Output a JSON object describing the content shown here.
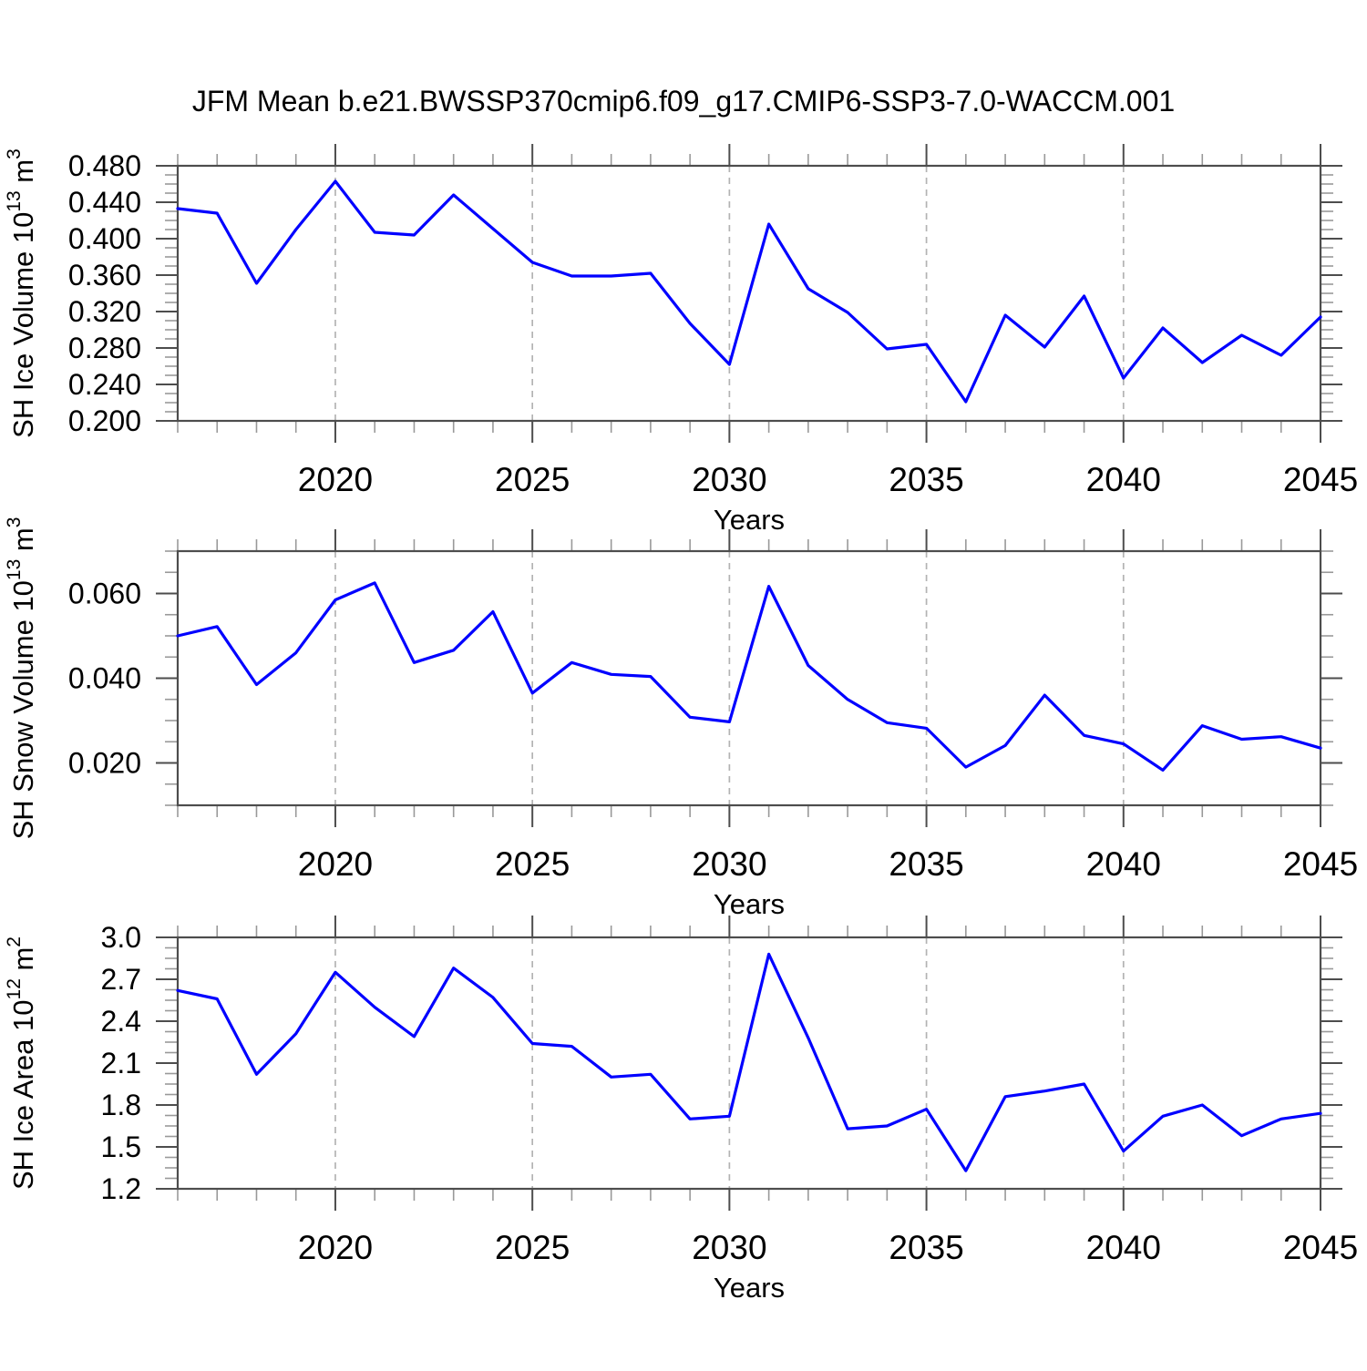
{
  "title": "JFM Mean b.e21.BWSSP370cmip6.f09_g17.CMIP6-SSP3-7.0-WACCM.001",
  "xlabel": "Years",
  "xtick_values": [
    2020,
    2025,
    2030,
    2035,
    2040,
    2045
  ],
  "xtick_labels": [
    "2020",
    "2025",
    "2030",
    "2035",
    "2040",
    "2045"
  ],
  "gridline_years": [
    2020,
    2025,
    2030,
    2035,
    2040
  ],
  "colors": {
    "line": "#0000ff",
    "grid": "#b3b3b3",
    "axis": "#4d4d4d",
    "minor_tick": "#999999",
    "text": "#000000",
    "background": "#ffffff"
  },
  "chart_data": [
    {
      "type": "line",
      "name": "sh-ice-volume",
      "title": "",
      "xlabel": "Years",
      "ylabel": "SH Ice Volume 10^13 m^3",
      "ylabel_parts": [
        {
          "t": "SH Ice Volume 10"
        },
        {
          "t": "13",
          "sup": true
        },
        {
          "t": " m"
        },
        {
          "t": "3",
          "sup": true
        }
      ],
      "x": [
        2016,
        2017,
        2018,
        2019,
        2020,
        2021,
        2022,
        2023,
        2024,
        2025,
        2026,
        2027,
        2028,
        2029,
        2030,
        2031,
        2032,
        2033,
        2034,
        2035,
        2036,
        2037,
        2038,
        2039,
        2040,
        2041,
        2042,
        2043,
        2044,
        2045
      ],
      "series": [
        {
          "name": "SH Ice Volume",
          "values": [
            0.433,
            0.428,
            0.351,
            0.41,
            0.463,
            0.407,
            0.404,
            0.448,
            0.411,
            0.374,
            0.359,
            0.359,
            0.362,
            0.307,
            0.262,
            0.416,
            0.345,
            0.319,
            0.279,
            0.284,
            0.221,
            0.316,
            0.281,
            0.337,
            0.247,
            0.302,
            0.264,
            0.294,
            0.272,
            0.314
          ]
        }
      ],
      "xlim": [
        2016,
        2045
      ],
      "ylim": [
        0.2,
        0.48
      ],
      "ytick_values": [
        0.2,
        0.24,
        0.28,
        0.32,
        0.36,
        0.4,
        0.44,
        0.48
      ],
      "ytick_labels": [
        "0.200",
        "0.240",
        "0.280",
        "0.320",
        "0.360",
        "0.400",
        "0.440",
        "0.480"
      ],
      "y_minor_step": 0.01,
      "grid": "vertical-dashed",
      "legend": "none"
    },
    {
      "type": "line",
      "name": "sh-snow-volume",
      "title": "",
      "xlabel": "Years",
      "ylabel": "SH Snow Volume 10^13 m^3",
      "ylabel_parts": [
        {
          "t": "SH Snow Volume 10"
        },
        {
          "t": "13",
          "sup": true
        },
        {
          "t": " m"
        },
        {
          "t": "3",
          "sup": true
        }
      ],
      "x": [
        2016,
        2017,
        2018,
        2019,
        2020,
        2021,
        2022,
        2023,
        2024,
        2025,
        2026,
        2027,
        2028,
        2029,
        2030,
        2031,
        2032,
        2033,
        2034,
        2035,
        2036,
        2037,
        2038,
        2039,
        2040,
        2041,
        2042,
        2043,
        2044,
        2045
      ],
      "series": [
        {
          "name": "SH Snow Volume",
          "values": [
            0.05,
            0.0522,
            0.0385,
            0.046,
            0.0585,
            0.0625,
            0.0437,
            0.0466,
            0.0557,
            0.0365,
            0.0437,
            0.0409,
            0.0404,
            0.0308,
            0.0297,
            0.0617,
            0.043,
            0.035,
            0.0295,
            0.0282,
            0.019,
            0.0241,
            0.036,
            0.0265,
            0.0245,
            0.0183,
            0.0288,
            0.0256,
            0.0262,
            0.0235
          ]
        }
      ],
      "xlim": [
        2016,
        2045
      ],
      "ylim": [
        0.01,
        0.07
      ],
      "ytick_values": [
        0.02,
        0.04,
        0.06
      ],
      "ytick_labels": [
        "0.020",
        "0.040",
        "0.060"
      ],
      "y_minor_step": 0.005,
      "grid": "vertical-dashed",
      "legend": "none"
    },
    {
      "type": "line",
      "name": "sh-ice-area",
      "title": "",
      "xlabel": "Years",
      "ylabel": "SH Ice Area 10^12 m^2",
      "ylabel_parts": [
        {
          "t": "SH Ice Area 10"
        },
        {
          "t": "12",
          "sup": true
        },
        {
          "t": " m"
        },
        {
          "t": "2",
          "sup": true
        }
      ],
      "x": [
        2016,
        2017,
        2018,
        2019,
        2020,
        2021,
        2022,
        2023,
        2024,
        2025,
        2026,
        2027,
        2028,
        2029,
        2030,
        2031,
        2032,
        2033,
        2034,
        2035,
        2036,
        2037,
        2038,
        2039,
        2040,
        2041,
        2042,
        2043,
        2044,
        2045
      ],
      "series": [
        {
          "name": "SH Ice Area",
          "values": [
            2.62,
            2.56,
            2.02,
            2.31,
            2.75,
            2.5,
            2.29,
            2.78,
            2.57,
            2.24,
            2.22,
            2.0,
            2.02,
            1.7,
            1.72,
            2.88,
            2.28,
            1.63,
            1.65,
            1.77,
            1.33,
            1.86,
            1.9,
            1.95,
            1.47,
            1.72,
            1.8,
            1.58,
            1.7,
            1.74
          ]
        }
      ],
      "xlim": [
        2016,
        2045
      ],
      "ylim": [
        1.2,
        3.0
      ],
      "ytick_values": [
        1.2,
        1.5,
        1.8,
        2.1,
        2.4,
        2.7,
        3.0
      ],
      "ytick_labels": [
        "1.2",
        "1.5",
        "1.8",
        "2.1",
        "2.4",
        "2.7",
        "3.0"
      ],
      "y_minor_step": 0.075,
      "grid": "vertical-dashed",
      "legend": "none"
    }
  ]
}
